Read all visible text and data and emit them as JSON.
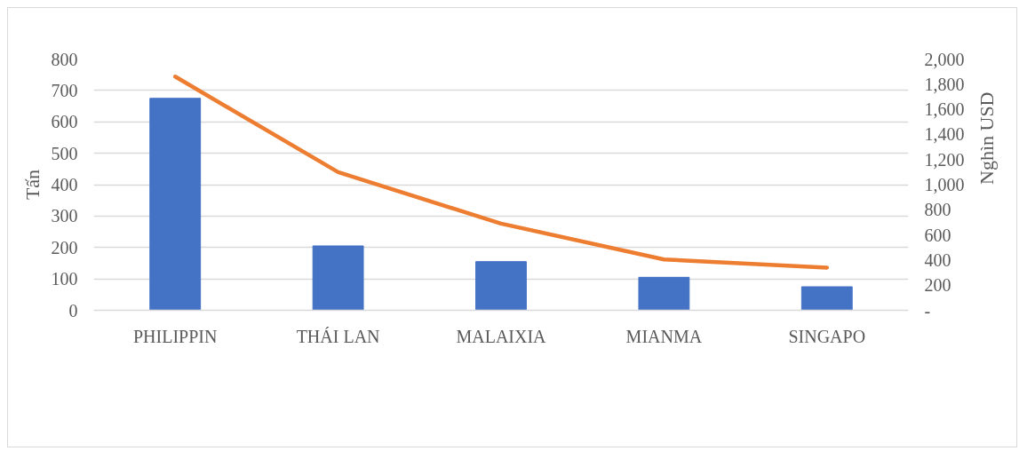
{
  "chart_data": {
    "type": "bar",
    "categories": [
      "PHILIPPIN",
      "THÁI LAN",
      "MALAIXIA",
      "MIANMA",
      "SINGAPO"
    ],
    "ylabel": "Tấn",
    "y2label": "Nghìn USD",
    "series": [
      {
        "color": "#4472c4",
        "values": [
          675,
          205,
          155,
          105,
          75
        ]
      },
      {
        "type": "line",
        "axis": "y2",
        "color": "#ed7d31",
        "values": [
          1860,
          1100,
          690,
          405,
          340
        ]
      }
    ],
    "ylim": [
      0,
      800
    ],
    "yticks": [
      0,
      100,
      200,
      300,
      400,
      500,
      600,
      700,
      800
    ],
    "y2lim": [
      0,
      2000
    ],
    "y2ticks": [
      {
        "value": 0,
        "label": "-"
      },
      200,
      400,
      600,
      800,
      {
        "value": 1000,
        "label": "1,000"
      },
      {
        "value": 1200,
        "label": "1,200"
      },
      {
        "value": 1400,
        "label": "1,400"
      },
      {
        "value": 1600,
        "label": "1,600"
      },
      {
        "value": 1800,
        "label": "1,800"
      },
      {
        "value": 2000,
        "label": "2,000"
      }
    ],
    "grid": "y",
    "line_style": "solid"
  }
}
